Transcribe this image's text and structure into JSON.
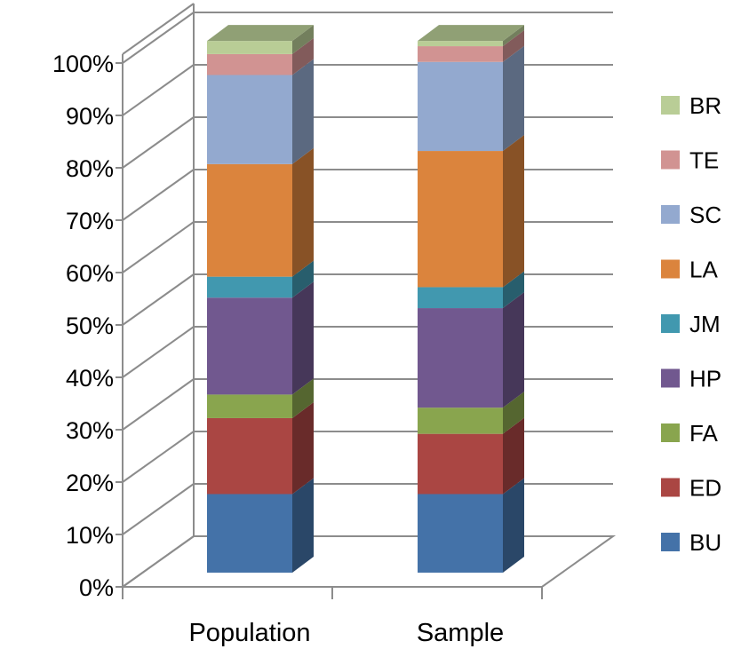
{
  "chart_data": {
    "type": "bar",
    "stacked": true,
    "percent_stacked": true,
    "style": "3d-column",
    "categories": [
      "Population",
      "Sample"
    ],
    "ylim": [
      0,
      100
    ],
    "yticks": [
      "0%",
      "10%",
      "20%",
      "30%",
      "40%",
      "50%",
      "60%",
      "70%",
      "80%",
      "90%",
      "100%"
    ],
    "grid": true,
    "legend_position": "right",
    "series": [
      {
        "name": "BU",
        "color": "#4472A8",
        "values": [
          15,
          15
        ]
      },
      {
        "name": "ED",
        "color": "#AA4643",
        "values": [
          14.5,
          11.5
        ]
      },
      {
        "name": "FA",
        "color": "#89A54E",
        "values": [
          4.5,
          5
        ]
      },
      {
        "name": "HP",
        "color": "#71588F",
        "values": [
          18.5,
          19
        ]
      },
      {
        "name": "JM",
        "color": "#4198AF",
        "values": [
          4,
          4
        ]
      },
      {
        "name": "LA",
        "color": "#DB843D",
        "values": [
          21.5,
          26
        ]
      },
      {
        "name": "SC",
        "color": "#93A9CF",
        "values": [
          17,
          17
        ]
      },
      {
        "name": "TE",
        "color": "#D19392",
        "values": [
          4,
          3
        ]
      },
      {
        "name": "BR",
        "color": "#B9CD96",
        "values": [
          2.5,
          1
        ]
      }
    ]
  }
}
